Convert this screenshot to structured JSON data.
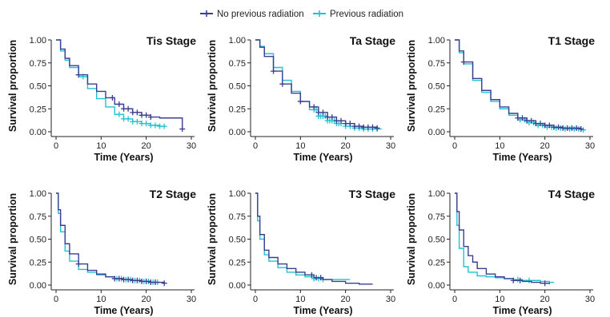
{
  "chart_data": {
    "type": "line",
    "legend": {
      "placement": "top-center",
      "entries": [
        {
          "name": "No previous radiation",
          "color": "#3b3f8f"
        },
        {
          "name": "Previous radiation",
          "color": "#22c3d1"
        }
      ]
    },
    "shared": {
      "xlabel": "Time (Years)",
      "ylabel": "Survival proportion",
      "xlim": [
        0,
        30
      ],
      "ylim": [
        0,
        1
      ],
      "xticks": [
        0,
        10,
        20,
        30
      ],
      "yticks": [
        0,
        0.25,
        0.5,
        0.75,
        1
      ],
      "xtick_labels": [
        "0",
        "10",
        "20",
        "30"
      ],
      "ytick_labels": [
        "0.00",
        "0.25",
        "0.50",
        "0.75",
        "1.00"
      ],
      "grid": false
    },
    "panels": [
      {
        "title": "Tis Stage",
        "series": [
          {
            "name": "No previous radiation",
            "x": [
              0,
              1,
              2,
              3,
              5,
              7,
              9,
              11,
              13,
              15,
              17,
              19,
              21,
              23,
              25,
              28
            ],
            "y": [
              1,
              0.9,
              0.8,
              0.72,
              0.62,
              0.52,
              0.44,
              0.37,
              0.3,
              0.25,
              0.21,
              0.18,
              0.16,
              0.15,
              0.15,
              0.03
            ],
            "censor_x": [
              5,
              12.5,
              14,
              15,
              16,
              17,
              18,
              19,
              20,
              21,
              28
            ]
          },
          {
            "name": "Previous radiation",
            "x": [
              0,
              1,
              2,
              3,
              5,
              7,
              9,
              11,
              13,
              15,
              17,
              19,
              21,
              23,
              24
            ],
            "y": [
              1,
              0.88,
              0.78,
              0.7,
              0.6,
              0.47,
              0.36,
              0.27,
              0.19,
              0.14,
              0.11,
              0.09,
              0.07,
              0.06,
              0.06
            ],
            "censor_x": [
              6,
              14,
              15,
              16,
              17,
              18,
              19,
              20,
              21,
              22,
              23,
              24
            ]
          }
        ]
      },
      {
        "title": "Ta Stage",
        "series": [
          {
            "name": "No previous radiation",
            "x": [
              0,
              1,
              2,
              4,
              6,
              8,
              10,
              12,
              14,
              16,
              18,
              20,
              22,
              24,
              27
            ],
            "y": [
              1,
              0.92,
              0.82,
              0.66,
              0.52,
              0.42,
              0.33,
              0.27,
              0.21,
              0.16,
              0.12,
              0.09,
              0.06,
              0.05,
              0.04
            ],
            "censor_x": [
              4,
              6,
              10,
              13,
              14,
              15,
              16,
              17,
              18,
              19,
              20,
              21,
              22,
              23,
              24,
              25,
              26,
              27
            ]
          },
          {
            "name": "Previous radiation",
            "x": [
              0,
              1,
              2,
              4,
              6,
              8,
              10,
              12,
              14,
              16,
              18,
              20,
              22,
              24,
              26,
              28
            ],
            "y": [
              1,
              0.93,
              0.85,
              0.7,
              0.56,
              0.44,
              0.33,
              0.24,
              0.17,
              0.12,
              0.09,
              0.06,
              0.04,
              0.03,
              0.03,
              0.03
            ],
            "censor_x": [
              13,
              13.5,
              14,
              14.5,
              15,
              15.5,
              16,
              16.5,
              17,
              17.5,
              18,
              18.5,
              19,
              20,
              21,
              22,
              23,
              24,
              25,
              26,
              27
            ]
          }
        ]
      },
      {
        "title": "T1 Stage",
        "series": [
          {
            "name": "No previous radiation",
            "x": [
              0,
              1,
              2,
              4,
              6,
              8,
              10,
              12,
              14,
              16,
              18,
              20,
              22,
              24,
              26,
              28
            ],
            "y": [
              1,
              0.88,
              0.76,
              0.58,
              0.45,
              0.35,
              0.27,
              0.2,
              0.15,
              0.12,
              0.09,
              0.07,
              0.05,
              0.04,
              0.04,
              0.03
            ],
            "censor_x": [
              2,
              14,
              15,
              16,
              17,
              18,
              19,
              20,
              21,
              22,
              23,
              24,
              25,
              26,
              27,
              28
            ]
          },
          {
            "name": "Previous radiation",
            "x": [
              0,
              1,
              2,
              4,
              6,
              8,
              10,
              12,
              14,
              16,
              18,
              20,
              22,
              24,
              26,
              28
            ],
            "y": [
              1,
              0.86,
              0.74,
              0.56,
              0.43,
              0.33,
              0.25,
              0.18,
              0.13,
              0.1,
              0.07,
              0.05,
              0.04,
              0.03,
              0.03,
              0.02
            ],
            "censor_x": [
              14.5,
              15.5,
              16.5,
              17.5,
              18.5,
              19.5,
              20.5,
              21.5,
              22.5,
              23.5,
              24.5,
              25.5,
              26.5,
              27.5,
              28.5
            ]
          }
        ]
      },
      {
        "title": "T2 Stage",
        "series": [
          {
            "name": "No previous radiation",
            "x": [
              0,
              0.5,
              1,
              2,
              3,
              5,
              7,
              9,
              11,
              13,
              15,
              17,
              19,
              21,
              24
            ],
            "y": [
              1,
              0.82,
              0.65,
              0.45,
              0.34,
              0.23,
              0.16,
              0.12,
              0.09,
              0.07,
              0.06,
              0.05,
              0.04,
              0.03,
              0.02
            ],
            "censor_x": [
              5,
              13,
              14,
              15,
              16,
              17,
              18,
              19,
              20,
              21,
              22,
              24
            ]
          },
          {
            "name": "Previous radiation",
            "x": [
              0,
              0.5,
              1,
              2,
              3,
              5,
              7,
              9,
              11,
              13,
              15,
              17,
              19,
              21,
              23
            ],
            "y": [
              1,
              0.78,
              0.58,
              0.37,
              0.26,
              0.17,
              0.14,
              0.11,
              0.09,
              0.07,
              0.06,
              0.05,
              0.04,
              0.03,
              0.03
            ],
            "censor_x": [
              13.5,
              14.5,
              15.5,
              16.5,
              17.5,
              18.5,
              19.5,
              20.5,
              21.5,
              22.5
            ]
          }
        ]
      },
      {
        "title": "T3 Stage",
        "series": [
          {
            "name": "No previous radiation",
            "x": [
              0,
              0.5,
              1,
              2,
              3,
              5,
              7,
              9,
              11,
              13,
              15,
              17,
              20,
              23,
              26
            ],
            "y": [
              1,
              0.75,
              0.55,
              0.38,
              0.3,
              0.23,
              0.18,
              0.14,
              0.11,
              0.08,
              0.06,
              0.04,
              0.02,
              0.01,
              0.01
            ],
            "censor_x": [
              12.5,
              13.5,
              14.5
            ]
          },
          {
            "name": "Previous radiation",
            "x": [
              0,
              0.5,
              1,
              2,
              3,
              5,
              7,
              9,
              11,
              13,
              15,
              17,
              19,
              21
            ],
            "y": [
              1,
              0.7,
              0.5,
              0.33,
              0.26,
              0.19,
              0.14,
              0.11,
              0.09,
              0.07,
              0.06,
              0.06,
              0.06,
              0.06
            ],
            "censor_x": [
              13,
              14,
              15
            ]
          }
        ]
      },
      {
        "title": "T4 Stage",
        "series": [
          {
            "name": "No previous radiation",
            "x": [
              0,
              0.5,
              1,
              2,
              3,
              4,
              5,
              7,
              9,
              11,
              13,
              15,
              17,
              19,
              21
            ],
            "y": [
              1,
              0.8,
              0.6,
              0.42,
              0.32,
              0.25,
              0.18,
              0.12,
              0.09,
              0.07,
              0.05,
              0.04,
              0.03,
              0.02,
              0.01
            ],
            "censor_x": [
              13,
              14.5,
              20
            ]
          },
          {
            "name": "Previous radiation",
            "x": [
              0,
              0.5,
              1,
              2,
              3,
              5,
              7,
              9,
              11,
              13,
              15,
              17,
              19,
              21,
              22
            ],
            "y": [
              1,
              0.65,
              0.4,
              0.2,
              0.14,
              0.1,
              0.09,
              0.08,
              0.07,
              0.06,
              0.05,
              0.05,
              0.04,
              0.03,
              0.03
            ],
            "censor_x": [
              14,
              16.5
            ]
          }
        ]
      }
    ]
  }
}
